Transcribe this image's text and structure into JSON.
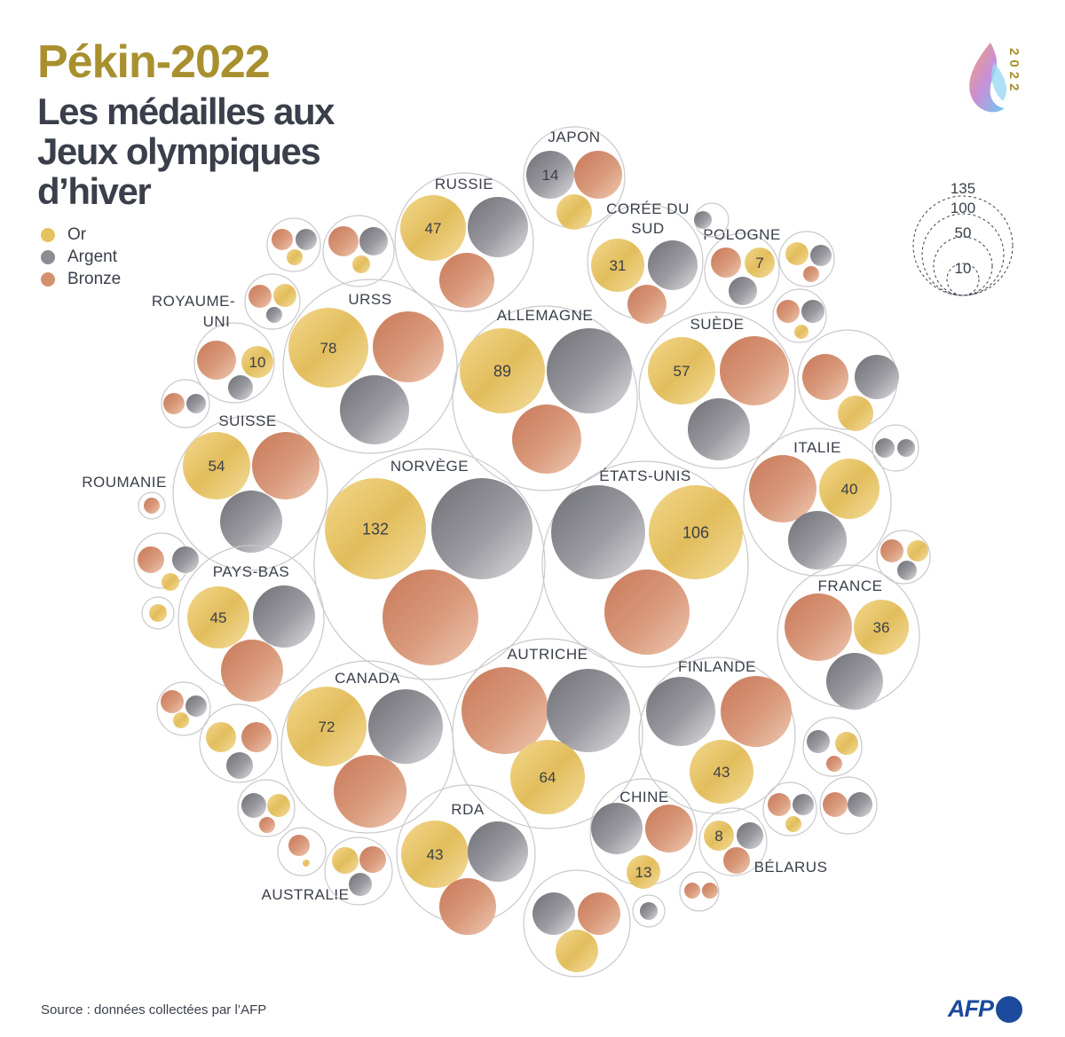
{
  "header": {
    "title": "Pékin-2022",
    "subtitle": "Les médailles aux Jeux olympiques d’hiver"
  },
  "legend": [
    {
      "label": "Or",
      "color": "#e6c25e"
    },
    {
      "label": "Argent",
      "color": "#8c8c92"
    },
    {
      "label": "Bronze",
      "color": "#d2906f"
    }
  ],
  "size_legend": [
    "135",
    "100",
    "50",
    "10"
  ],
  "logo_year": "2022",
  "source": "Source : données collectées par l’AFP",
  "afp_logo": "AFP",
  "chart_data": {
    "type": "packed-bubble",
    "title": "Les médailles aux Jeux olympiques d’hiver",
    "value_label": "Or",
    "size_legend_values": [
      135,
      100,
      50,
      10
    ],
    "countries": [
      {
        "name": "Japon",
        "gold": 14,
        "labels": [
          "JAPON"
        ]
      },
      {
        "name": "Russie",
        "gold": 47,
        "labels": [
          "RUSSIE"
        ]
      },
      {
        "name": "Corée du Sud",
        "gold": 31,
        "labels": [
          "CORÉE DU",
          "SUD"
        ]
      },
      {
        "name": "Pologne",
        "gold": 7,
        "labels": [
          "POLOGNE"
        ]
      },
      {
        "name": "Royaume-Uni",
        "gold": 10,
        "labels": [
          "ROYAUME-",
          "UNI"
        ]
      },
      {
        "name": "URSS",
        "gold": 78,
        "labels": [
          "URSS"
        ]
      },
      {
        "name": "Allemagne",
        "gold": 89,
        "labels": [
          "ALLEMAGNE"
        ]
      },
      {
        "name": "Suède",
        "gold": 57,
        "labels": [
          "SUÈDE"
        ]
      },
      {
        "name": "Suisse",
        "gold": 54,
        "labels": [
          "SUISSE"
        ]
      },
      {
        "name": "Norvège",
        "gold": 132,
        "labels": [
          "NORVÈGE"
        ]
      },
      {
        "name": "États-Unis",
        "gold": 106,
        "labels": [
          "ÉTATS-UNIS"
        ]
      },
      {
        "name": "Italie",
        "gold": 40,
        "labels": [
          "ITALIE"
        ]
      },
      {
        "name": "Roumanie",
        "gold": null,
        "labels": [
          "ROUMANIE"
        ]
      },
      {
        "name": "Pays-Bas",
        "gold": 45,
        "labels": [
          "PAYS-BAS"
        ]
      },
      {
        "name": "France",
        "gold": 36,
        "labels": [
          "FRANCE"
        ]
      },
      {
        "name": "Canada",
        "gold": 72,
        "labels": [
          "CANADA"
        ]
      },
      {
        "name": "Autriche",
        "gold": 64,
        "labels": [
          "AUTRICHE"
        ]
      },
      {
        "name": "Finlande",
        "gold": 43,
        "labels": [
          "FINLANDE"
        ]
      },
      {
        "name": "RDA",
        "gold": 43,
        "labels": [
          "RDA"
        ]
      },
      {
        "name": "Chine",
        "gold": 13,
        "labels": [
          "CHINE"
        ]
      },
      {
        "name": "Bélarus",
        "gold": 8,
        "labels": [
          "BÉLARUS"
        ]
      },
      {
        "name": "Australie",
        "gold": null,
        "labels": [
          "AUSTRALIE"
        ]
      }
    ]
  }
}
